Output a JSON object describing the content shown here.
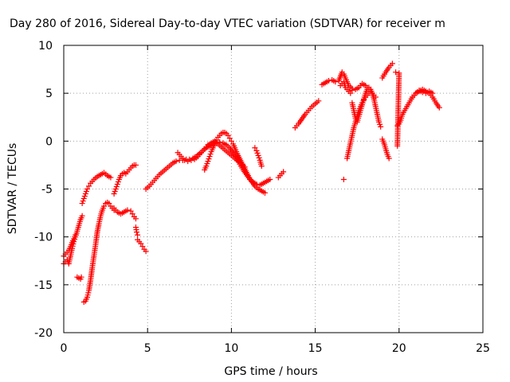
{
  "chart_data": {
    "type": "scatter",
    "title": "Day 280 of 2016, Sidereal Day-to-day VTEC variation (SDTVAR) for receiver m",
    "xlabel": "GPS time / hours",
    "ylabel": "SDTVAR / TECUs",
    "xlim": [
      0,
      25
    ],
    "ylim": [
      -20,
      10
    ],
    "xticks": [
      0,
      5,
      10,
      15,
      20,
      25
    ],
    "yticks": [
      -20,
      -15,
      -10,
      -5,
      0,
      5,
      10
    ],
    "grid": true,
    "marker": "+",
    "color": "#ff0000",
    "series": [
      {
        "x": [
          0.0,
          0.1,
          0.2,
          0.3,
          0.4,
          0.5,
          0.6,
          0.7,
          0.8,
          0.9,
          1.0,
          1.1
        ],
        "y": [
          -12.8,
          -12.6,
          -12.4,
          -12.8,
          -12.0,
          -11.2,
          -10.5,
          -10.0,
          -9.4,
          -8.8,
          -8.2,
          -7.8
        ]
      },
      {
        "x": [
          0.0,
          0.1,
          0.2,
          0.3,
          0.4,
          0.5,
          0.6,
          0.7
        ],
        "y": [
          -12.0,
          -11.8,
          -11.6,
          -11.4,
          -11.0,
          -10.6,
          -10.2,
          -9.8
        ]
      },
      {
        "x": [
          0.8,
          0.9,
          1.0,
          1.05
        ],
        "y": [
          -14.2,
          -14.3,
          -14.4,
          -14.2
        ]
      },
      {
        "x": [
          1.1,
          1.2,
          1.3,
          1.4,
          1.5,
          1.6,
          1.8,
          2.0,
          2.2,
          2.4,
          2.6,
          2.8
        ],
        "y": [
          -6.5,
          -6.0,
          -5.5,
          -5.0,
          -4.7,
          -4.4,
          -4.0,
          -3.7,
          -3.5,
          -3.3,
          -3.6,
          -3.8
        ]
      },
      {
        "x": [
          1.2,
          1.3,
          1.4,
          1.5,
          1.6,
          1.7,
          1.8,
          1.9,
          2.0,
          2.1,
          2.2,
          2.3,
          2.4,
          2.5,
          2.6,
          2.7,
          2.8,
          2.9,
          3.0
        ],
        "y": [
          -16.8,
          -16.7,
          -16.3,
          -15.6,
          -14.5,
          -13.2,
          -12.0,
          -10.8,
          -9.5,
          -8.6,
          -7.8,
          -7.2,
          -6.8,
          -6.5,
          -6.4,
          -6.5,
          -6.8,
          -7.0,
          -7.2
        ]
      },
      {
        "x": [
          3.0,
          3.1,
          3.2,
          3.3,
          3.4,
          3.5,
          3.6,
          3.7,
          3.8,
          3.9,
          4.0,
          4.1,
          4.2,
          4.3
        ],
        "y": [
          -5.5,
          -5.0,
          -4.5,
          -4.0,
          -3.6,
          -3.4,
          -3.3,
          -3.4,
          -3.2,
          -3.0,
          -2.8,
          -2.6,
          -2.5,
          -2.5
        ]
      },
      {
        "x": [
          3.0,
          3.2,
          3.4,
          3.6,
          3.8,
          4.0,
          4.1,
          4.2,
          4.3
        ],
        "y": [
          -7.0,
          -7.4,
          -7.6,
          -7.4,
          -7.2,
          -7.3,
          -7.6,
          -7.9,
          -8.1
        ]
      },
      {
        "x": [
          4.4,
          4.5,
          4.6,
          4.7,
          4.8,
          4.9
        ],
        "y": [
          -10.3,
          -10.5,
          -10.7,
          -11.0,
          -11.3,
          -11.5
        ]
      },
      {
        "x": [
          4.3,
          4.35,
          4.4
        ],
        "y": [
          -9.0,
          -9.5,
          -9.8
        ]
      },
      {
        "x": [
          4.9,
          5.1,
          5.3,
          5.5,
          5.7,
          5.9,
          6.1,
          6.3,
          6.5,
          6.7,
          6.9,
          7.1,
          7.3,
          7.5,
          7.7,
          7.9,
          8.1,
          8.3,
          8.5,
          8.7,
          8.9,
          9.1,
          9.3,
          9.5,
          9.7,
          9.9,
          10.1,
          10.3,
          10.5,
          10.7,
          10.9,
          11.1,
          11.3,
          11.5,
          11.7,
          11.9,
          12.1,
          12.3
        ],
        "y": [
          -5.0,
          -4.7,
          -4.3,
          -3.9,
          -3.5,
          -3.2,
          -2.9,
          -2.6,
          -2.3,
          -2.1,
          -2.0,
          -2.0,
          -1.9,
          -1.9,
          -1.8,
          -1.6,
          -1.3,
          -1.0,
          -0.7,
          -0.5,
          -0.3,
          -0.2,
          -0.1,
          -0.2,
          -0.4,
          -0.7,
          -1.2,
          -1.8,
          -2.4,
          -3.0,
          -3.5,
          -4.0,
          -4.3,
          -4.5,
          -4.6,
          -4.4,
          -4.2,
          -4.0
        ]
      },
      {
        "x": [
          6.8,
          7.0,
          7.2,
          7.4,
          7.6,
          7.8,
          8.0,
          8.2,
          8.4,
          8.6,
          8.8,
          9.0,
          9.2,
          9.4,
          9.6,
          9.8,
          10.0,
          10.2,
          10.4,
          10.6,
          10.8
        ],
        "y": [
          -1.2,
          -1.6,
          -2.0,
          -2.1,
          -2.0,
          -1.9,
          -1.6,
          -1.2,
          -0.8,
          -0.4,
          -0.2,
          0.0,
          -0.3,
          -0.6,
          -0.9,
          -1.2,
          -1.5,
          -1.8,
          -2.1,
          -2.4,
          -2.7
        ]
      },
      {
        "x": [
          8.4,
          8.5,
          8.6,
          8.7,
          8.8,
          8.9,
          9.0,
          9.1,
          9.2,
          9.3,
          9.4,
          9.5,
          9.6,
          9.7,
          9.8,
          9.9,
          10.0,
          10.1,
          10.2,
          10.3,
          10.4,
          10.6,
          10.8,
          11.0,
          11.2,
          11.4,
          11.6,
          11.8,
          12.0
        ],
        "y": [
          -3.0,
          -2.6,
          -2.1,
          -1.6,
          -1.1,
          -0.7,
          -0.3,
          0.1,
          0.4,
          0.6,
          0.8,
          0.9,
          0.9,
          0.8,
          0.6,
          0.3,
          0.0,
          -0.3,
          -0.7,
          -1.1,
          -1.5,
          -2.2,
          -2.9,
          -3.6,
          -4.2,
          -4.7,
          -5.0,
          -5.2,
          -5.4
        ]
      },
      {
        "x": [
          11.4,
          11.5,
          11.6,
          11.7,
          11.8
        ],
        "y": [
          -0.7,
          -1.0,
          -1.5,
          -2.0,
          -2.6
        ]
      },
      {
        "x": [
          12.8,
          12.9,
          13.0,
          13.1
        ],
        "y": [
          -3.8,
          -3.6,
          -3.4,
          -3.2
        ]
      },
      {
        "x": [
          13.8,
          14.0,
          14.2,
          14.4,
          14.6,
          14.8,
          15.0,
          15.2
        ],
        "y": [
          1.4,
          1.8,
          2.3,
          2.8,
          3.2,
          3.6,
          3.9,
          4.2
        ]
      },
      {
        "x": [
          15.4,
          15.6,
          15.8,
          16.0,
          16.2,
          16.4,
          16.6,
          16.7,
          16.8,
          16.9,
          17.0,
          17.2,
          17.4,
          17.6,
          17.8,
          18.0,
          18.2,
          18.4,
          18.6
        ],
        "y": [
          5.9,
          6.1,
          6.3,
          6.4,
          6.2,
          6.3,
          7.2,
          7.0,
          6.6,
          6.2,
          5.8,
          5.5,
          5.4,
          5.6,
          6.0,
          5.8,
          5.4,
          5.0,
          4.6
        ]
      },
      {
        "x": [
          16.5,
          16.6,
          16.7,
          16.8,
          17.0,
          17.1,
          17.2
        ],
        "y": [
          5.8,
          6.0,
          6.2,
          5.6,
          5.2,
          5.0,
          5.3
        ]
      },
      {
        "x": [
          16.7
        ],
        "y": [
          -4.0
        ]
      },
      {
        "x": [
          16.9,
          17.0,
          17.1,
          17.2,
          17.3,
          17.4,
          17.5,
          17.6,
          17.7,
          17.8,
          17.9,
          18.0,
          18.1,
          18.2,
          18.3
        ],
        "y": [
          -1.8,
          -1.0,
          -0.2,
          0.6,
          1.4,
          2.0,
          2.6,
          3.2,
          3.6,
          4.0,
          4.3,
          4.6,
          4.8,
          5.0,
          5.2
        ]
      },
      {
        "x": [
          17.2,
          17.3,
          17.4,
          17.5,
          17.6,
          17.7,
          17.8,
          17.9,
          18.0,
          18.1,
          18.2,
          18.3,
          18.4,
          18.5,
          18.6,
          18.7,
          18.8,
          18.9
        ],
        "y": [
          4.0,
          3.2,
          2.4,
          2.0,
          2.6,
          3.2,
          3.8,
          4.4,
          5.0,
          5.4,
          5.6,
          5.4,
          5.0,
          4.4,
          3.6,
          2.8,
          2.0,
          1.5
        ]
      },
      {
        "x": [
          19.0,
          19.1,
          19.2,
          19.3,
          19.4
        ],
        "y": [
          0.2,
          -0.2,
          -0.8,
          -1.4,
          -1.8
        ]
      },
      {
        "x": [
          19.0,
          19.2,
          19.4,
          19.6
        ],
        "y": [
          6.6,
          7.2,
          7.7,
          8.1
        ]
      },
      {
        "x": [
          19.8,
          20.0,
          19.9
        ],
        "y": [
          7.2,
          7.1,
          -0.5
        ]
      },
      {
        "x": [
          19.9,
          20.0,
          20.1,
          20.2,
          20.4,
          20.6,
          20.8,
          21.0,
          21.2,
          21.4,
          21.6,
          21.8,
          22.0,
          22.2,
          22.4
        ],
        "y": [
          1.6,
          1.8,
          2.2,
          2.8,
          3.4,
          4.0,
          4.6,
          5.0,
          5.2,
          5.4,
          5.2,
          5.0,
          4.6,
          4.0,
          3.5
        ]
      },
      {
        "x": [
          20.8,
          21.0,
          21.2,
          21.4,
          21.6,
          21.8,
          22.0
        ],
        "y": [
          4.6,
          5.0,
          5.3,
          5.1,
          5.0,
          5.2,
          5.0
        ]
      }
    ]
  }
}
